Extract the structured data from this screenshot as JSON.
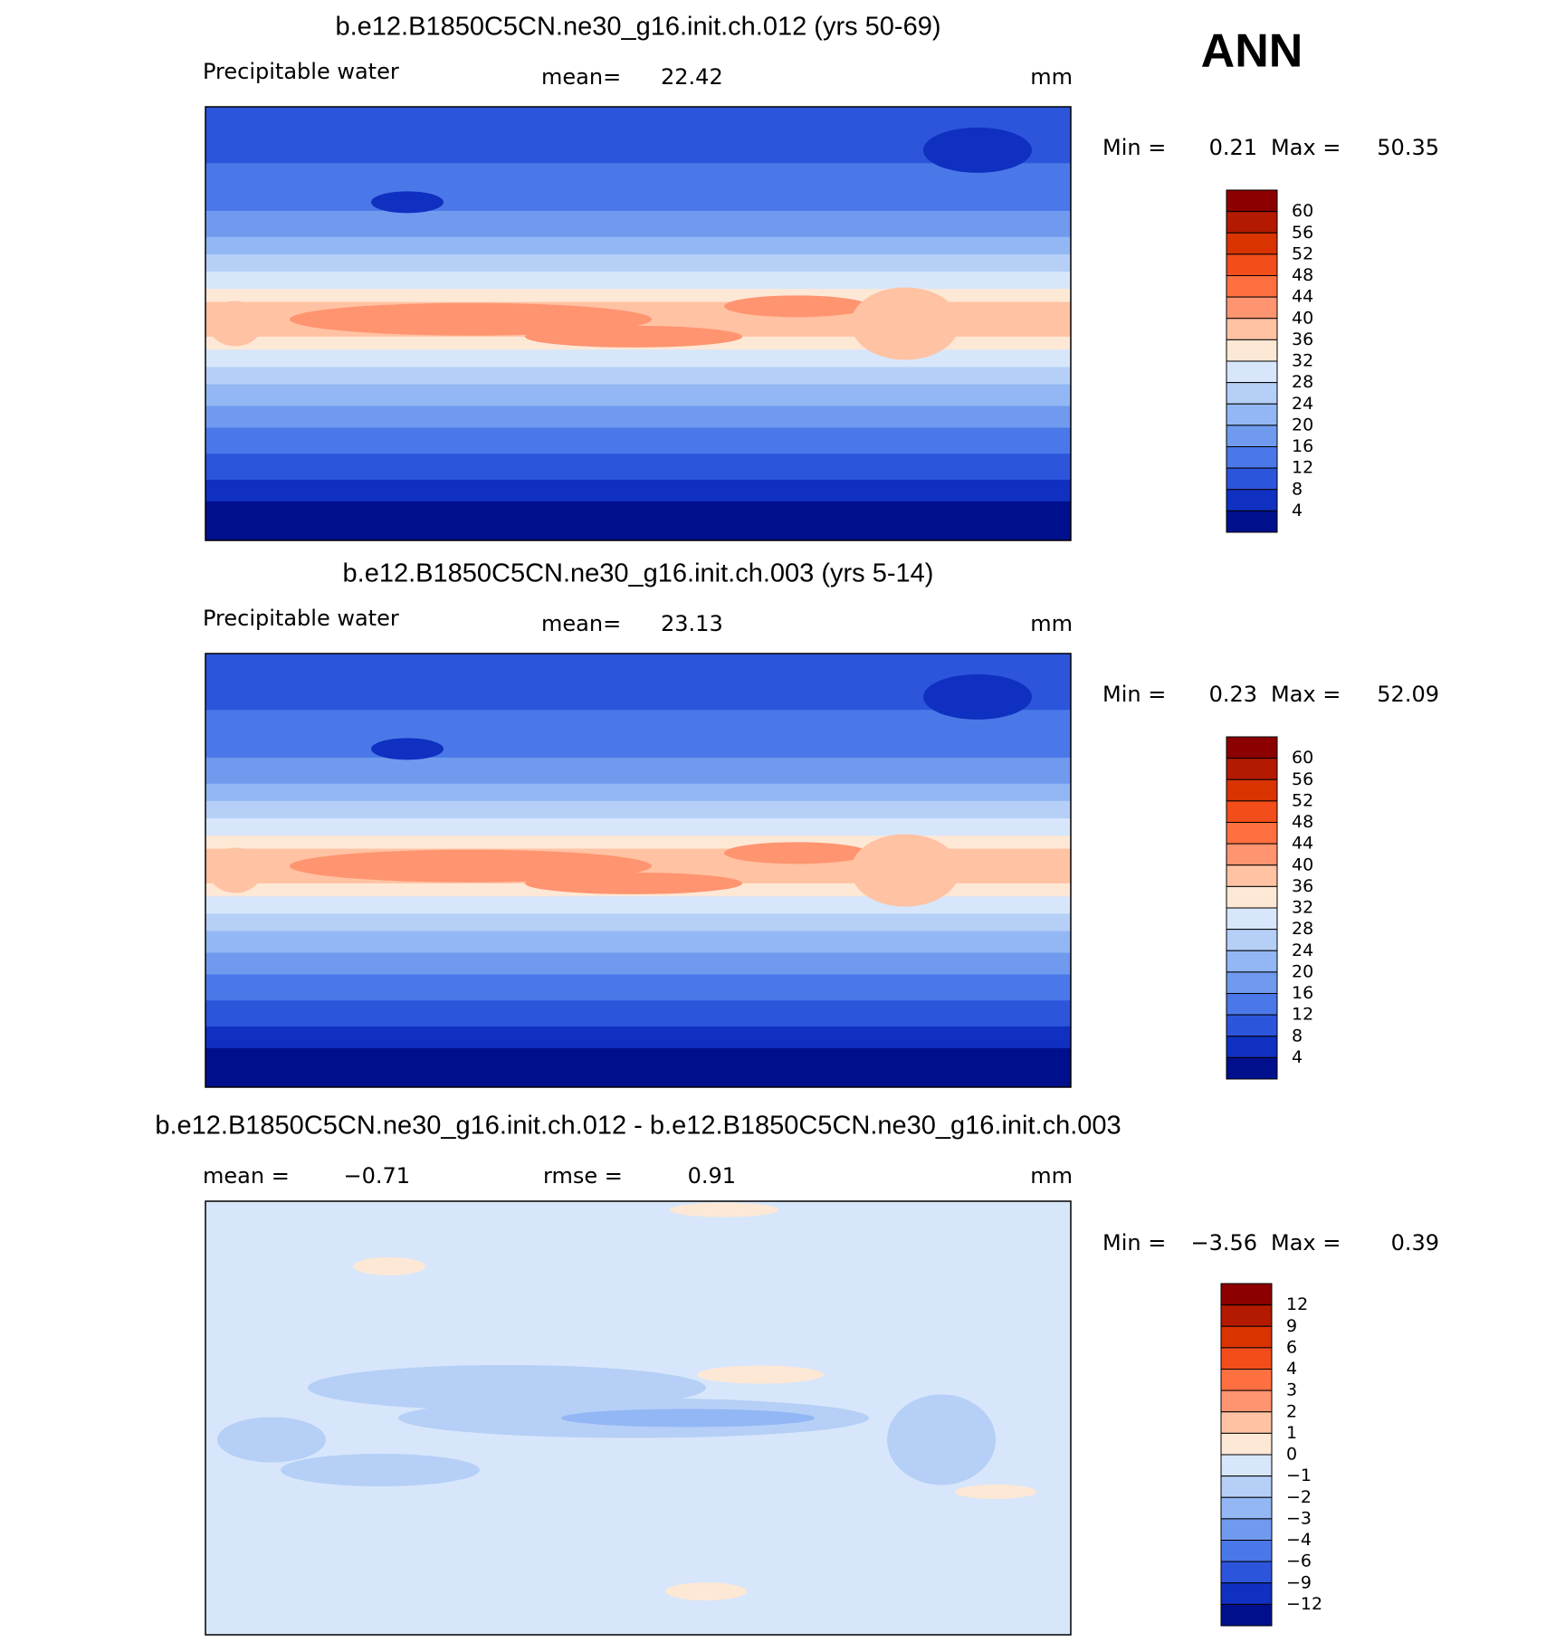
{
  "header": {
    "season": "ANN"
  },
  "panels": [
    {
      "title": "b.e12.B1850C5CN.ne30_g16.init.ch.012 (yrs 50-69)",
      "variable": "Precipitable water",
      "stats": [
        {
          "label": "mean=",
          "value": "22.42"
        }
      ],
      "units": "mm",
      "min_label": "Min =",
      "min": "0.21",
      "max_label": "Max =",
      "max": "50.35",
      "colorbar": {
        "labels": [
          "60",
          "56",
          "52",
          "48",
          "44",
          "40",
          "36",
          "32",
          "28",
          "24",
          "20",
          "16",
          "12",
          "8",
          "4"
        ],
        "colors": [
          "#8c0000",
          "#b31a00",
          "#d93300",
          "#f24d1a",
          "#ff7040",
          "#ff9470",
          "#ffc2a3",
          "#fde8d6",
          "#d7e6fa",
          "#b5cff7",
          "#93b7f4",
          "#6f9aee",
          "#4a78e8",
          "#2c55dc",
          "#0f30c0",
          "#00108c"
        ]
      }
    },
    {
      "title": "b.e12.B1850C5CN.ne30_g16.init.ch.003 (yrs 5-14)",
      "variable": "Precipitable water",
      "stats": [
        {
          "label": "mean=",
          "value": "23.13"
        }
      ],
      "units": "mm",
      "min_label": "Min =",
      "min": "0.23",
      "max_label": "Max =",
      "max": "52.09",
      "colorbar": {
        "labels": [
          "60",
          "56",
          "52",
          "48",
          "44",
          "40",
          "36",
          "32",
          "28",
          "24",
          "20",
          "16",
          "12",
          "8",
          "4"
        ],
        "colors": [
          "#8c0000",
          "#b31a00",
          "#d93300",
          "#f24d1a",
          "#ff7040",
          "#ff9470",
          "#ffc2a3",
          "#fde8d6",
          "#d7e6fa",
          "#b5cff7",
          "#93b7f4",
          "#6f9aee",
          "#4a78e8",
          "#2c55dc",
          "#0f30c0",
          "#00108c"
        ]
      }
    },
    {
      "title": "b.e12.B1850C5CN.ne30_g16.init.ch.012 - b.e12.B1850C5CN.ne30_g16.init.ch.003",
      "stats": [
        {
          "label": "mean =",
          "value": "−0.71"
        },
        {
          "label": "rmse =",
          "value": "0.91"
        }
      ],
      "units": "mm",
      "min_label": "Min =",
      "min": "−3.56",
      "max_label": "Max =",
      "max": "0.39",
      "colorbar": {
        "labels": [
          "12",
          "9",
          "6",
          "4",
          "3",
          "2",
          "1",
          "0",
          "−1",
          "−2",
          "−3",
          "−4",
          "−6",
          "−9",
          "−12"
        ],
        "colors": [
          "#8c0000",
          "#b31a00",
          "#d93300",
          "#f24d1a",
          "#ff7040",
          "#ff9470",
          "#ffc2a3",
          "#fde8d6",
          "#d7e6fa",
          "#b5cff7",
          "#93b7f4",
          "#6f9aee",
          "#4a78e8",
          "#2c55dc",
          "#0f30c0",
          "#00108c"
        ]
      }
    }
  ]
}
